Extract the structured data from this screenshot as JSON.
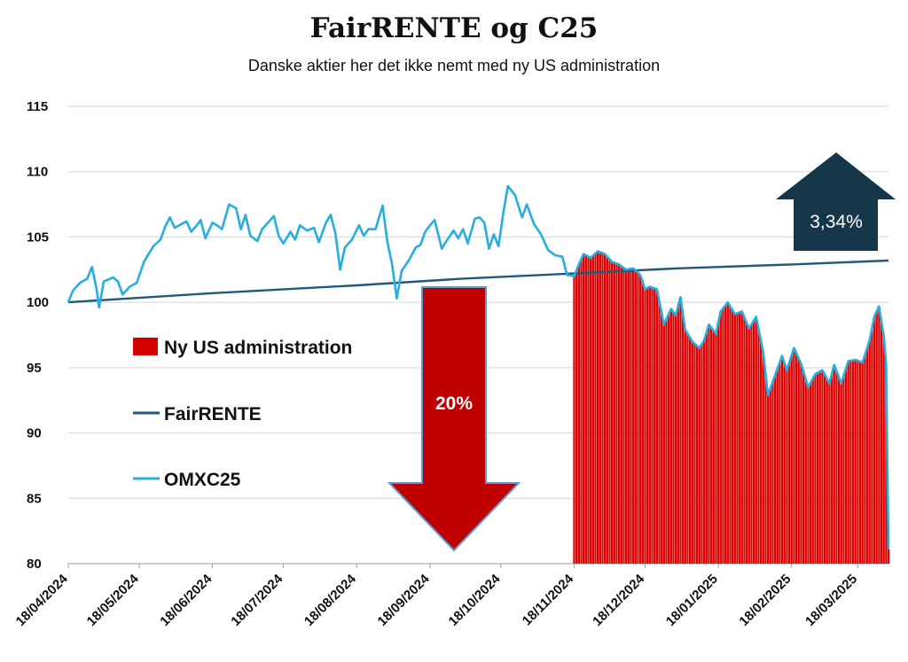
{
  "chart_data": {
    "type": "line",
    "title": "FairRENTE og C25",
    "subtitle": "Danske aktier her det ikke nemt med ny US administration",
    "x_start": "2024-04-18",
    "x_end": "2025-03-31",
    "ylim": [
      80,
      115
    ],
    "yticks": [
      "115",
      "110",
      "105",
      "100",
      "95",
      "90",
      "85",
      "80"
    ],
    "xtick_labels": [
      "18/04/2024",
      "18/05/2024",
      "18/06/2024",
      "18/07/2024",
      "18/08/2024",
      "18/09/2024",
      "18/10/2024",
      "18/11/2024",
      "18/12/2024",
      "18/01/2025",
      "18/02/2025",
      "18/03/2025"
    ],
    "grid": true,
    "legend": [
      {
        "name": "Ny US administration",
        "color": "#d40000",
        "kind": "box"
      },
      {
        "name": "FairRENTE",
        "color": "#1f5a7a",
        "kind": "line"
      },
      {
        "name": "OMXC25",
        "color": "#27aee0",
        "kind": "line"
      }
    ],
    "series": [
      {
        "name": "FairRENTE",
        "color": "#1f5a7a",
        "points": [
          [
            "2024-04-18",
            100.0
          ],
          [
            "2024-06-18",
            100.7
          ],
          [
            "2024-08-18",
            101.3
          ],
          [
            "2024-10-01",
            101.8
          ],
          [
            "2024-11-05",
            102.1
          ],
          [
            "2025-01-01",
            102.6
          ],
          [
            "2025-02-18",
            102.9
          ],
          [
            "2025-03-31",
            103.2
          ]
        ]
      },
      {
        "name": "OMXC25",
        "color": "#27aee0",
        "points": [
          [
            "2024-04-18",
            100.0
          ],
          [
            "2024-04-20",
            100.9
          ],
          [
            "2024-04-23",
            101.5
          ],
          [
            "2024-04-26",
            101.8
          ],
          [
            "2024-04-28",
            102.7
          ],
          [
            "2024-04-30",
            101.0
          ],
          [
            "2024-05-01",
            99.6
          ],
          [
            "2024-05-03",
            101.6
          ],
          [
            "2024-05-07",
            101.9
          ],
          [
            "2024-05-09",
            101.6
          ],
          [
            "2024-05-11",
            100.6
          ],
          [
            "2024-05-14",
            101.2
          ],
          [
            "2024-05-17",
            101.5
          ],
          [
            "2024-05-20",
            103.1
          ],
          [
            "2024-05-24",
            104.3
          ],
          [
            "2024-05-27",
            104.8
          ],
          [
            "2024-05-29",
            105.8
          ],
          [
            "2024-05-31",
            106.5
          ],
          [
            "2024-06-02",
            105.7
          ],
          [
            "2024-06-05",
            106.0
          ],
          [
            "2024-06-07",
            106.2
          ],
          [
            "2024-06-09",
            105.4
          ],
          [
            "2024-06-11",
            105.8
          ],
          [
            "2024-06-13",
            106.3
          ],
          [
            "2024-06-15",
            104.9
          ],
          [
            "2024-06-18",
            106.1
          ],
          [
            "2024-06-20",
            105.9
          ],
          [
            "2024-06-22",
            105.6
          ],
          [
            "2024-06-25",
            107.5
          ],
          [
            "2024-06-28",
            107.2
          ],
          [
            "2024-06-30",
            105.6
          ],
          [
            "2024-07-02",
            106.7
          ],
          [
            "2024-07-04",
            105.1
          ],
          [
            "2024-07-07",
            104.7
          ],
          [
            "2024-07-09",
            105.6
          ],
          [
            "2024-07-11",
            106.0
          ],
          [
            "2024-07-14",
            106.6
          ],
          [
            "2024-07-16",
            105.1
          ],
          [
            "2024-07-18",
            104.5
          ],
          [
            "2024-07-21",
            105.4
          ],
          [
            "2024-07-23",
            104.8
          ],
          [
            "2024-07-25",
            105.9
          ],
          [
            "2024-07-28",
            105.5
          ],
          [
            "2024-07-31",
            105.7
          ],
          [
            "2024-08-02",
            104.6
          ],
          [
            "2024-08-05",
            106.1
          ],
          [
            "2024-08-07",
            106.7
          ],
          [
            "2024-08-09",
            105.3
          ],
          [
            "2024-08-11",
            102.5
          ],
          [
            "2024-08-13",
            104.2
          ],
          [
            "2024-08-16",
            104.8
          ],
          [
            "2024-08-19",
            105.9
          ],
          [
            "2024-08-21",
            105.1
          ],
          [
            "2024-08-23",
            105.6
          ],
          [
            "2024-08-26",
            105.6
          ],
          [
            "2024-08-29",
            107.4
          ],
          [
            "2024-08-31",
            104.6
          ],
          [
            "2024-09-02",
            102.9
          ],
          [
            "2024-09-04",
            100.3
          ],
          [
            "2024-09-06",
            102.4
          ],
          [
            "2024-09-09",
            103.2
          ],
          [
            "2024-09-12",
            104.2
          ],
          [
            "2024-09-14",
            104.4
          ],
          [
            "2024-09-16",
            105.4
          ],
          [
            "2024-09-18",
            105.9
          ],
          [
            "2024-09-20",
            106.3
          ],
          [
            "2024-09-23",
            104.1
          ],
          [
            "2024-09-25",
            104.7
          ],
          [
            "2024-09-28",
            105.5
          ],
          [
            "2024-09-30",
            104.9
          ],
          [
            "2024-10-02",
            105.6
          ],
          [
            "2024-10-04",
            104.5
          ],
          [
            "2024-10-07",
            106.4
          ],
          [
            "2024-10-09",
            106.5
          ],
          [
            "2024-10-11",
            106.1
          ],
          [
            "2024-10-13",
            104.1
          ],
          [
            "2024-10-15",
            105.2
          ],
          [
            "2024-10-17",
            104.3
          ],
          [
            "2024-10-19",
            106.8
          ],
          [
            "2024-10-21",
            108.9
          ],
          [
            "2024-10-24",
            108.2
          ],
          [
            "2024-10-27",
            106.5
          ],
          [
            "2024-10-29",
            107.5
          ],
          [
            "2024-11-01",
            106.0
          ],
          [
            "2024-11-04",
            105.2
          ],
          [
            "2024-11-07",
            104.0
          ],
          [
            "2024-11-10",
            103.6
          ],
          [
            "2024-11-13",
            103.5
          ],
          [
            "2024-11-15",
            102.1
          ],
          [
            "2024-11-18",
            102.0
          ],
          [
            "2024-11-20",
            102.9
          ],
          [
            "2024-11-22",
            103.7
          ],
          [
            "2024-11-25",
            103.4
          ],
          [
            "2024-11-28",
            103.9
          ],
          [
            "2024-12-01",
            103.7
          ],
          [
            "2024-12-04",
            103.1
          ],
          [
            "2024-12-07",
            102.9
          ],
          [
            "2024-12-10",
            102.5
          ],
          [
            "2024-12-13",
            102.6
          ],
          [
            "2024-12-16",
            102.1
          ],
          [
            "2024-12-18",
            101.0
          ],
          [
            "2024-12-20",
            101.2
          ],
          [
            "2024-12-23",
            101.0
          ],
          [
            "2024-12-26",
            98.3
          ],
          [
            "2024-12-29",
            99.5
          ],
          [
            "2024-12-31",
            99.0
          ],
          [
            "2025-01-02",
            100.4
          ],
          [
            "2025-01-04",
            97.9
          ],
          [
            "2025-01-07",
            97.0
          ],
          [
            "2025-01-10",
            96.5
          ],
          [
            "2025-01-12",
            97.1
          ],
          [
            "2025-01-14",
            98.3
          ],
          [
            "2025-01-17",
            97.6
          ],
          [
            "2025-01-19",
            99.3
          ],
          [
            "2025-01-22",
            100.0
          ],
          [
            "2025-01-25",
            99.1
          ],
          [
            "2025-01-28",
            99.3
          ],
          [
            "2025-01-31",
            98.0
          ],
          [
            "2025-02-03",
            98.9
          ],
          [
            "2025-02-06",
            96.2
          ],
          [
            "2025-02-08",
            92.9
          ],
          [
            "2025-02-11",
            94.4
          ],
          [
            "2025-02-14",
            95.9
          ],
          [
            "2025-02-16",
            94.8
          ],
          [
            "2025-02-19",
            96.5
          ],
          [
            "2025-02-22",
            95.3
          ],
          [
            "2025-02-25",
            93.5
          ],
          [
            "2025-02-28",
            94.5
          ],
          [
            "2025-03-03",
            94.8
          ],
          [
            "2025-03-06",
            93.8
          ],
          [
            "2025-03-08",
            95.2
          ],
          [
            "2025-03-11",
            93.8
          ],
          [
            "2025-03-14",
            95.5
          ],
          [
            "2025-03-17",
            95.6
          ],
          [
            "2025-03-20",
            95.4
          ],
          [
            "2025-03-23",
            97.1
          ],
          [
            "2025-03-25",
            98.9
          ],
          [
            "2025-03-27",
            99.7
          ],
          [
            "2025-03-29",
            97.4
          ],
          [
            "2025-03-30",
            95.3
          ],
          [
            "2025-03-31",
            81.1
          ]
        ]
      }
    ],
    "annotations": [
      {
        "label": "20%",
        "kind": "down-arrow",
        "color": "#c00000"
      },
      {
        "label": "3,34%",
        "kind": "up-arrow",
        "color": "#16364a"
      }
    ],
    "highlight_region": {
      "name": "Ny US administration",
      "from": "2024-11-18",
      "to": "2025-03-31",
      "color": "#e00000"
    }
  }
}
